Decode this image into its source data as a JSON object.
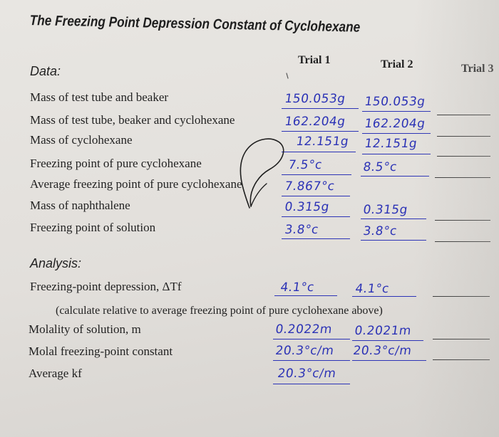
{
  "title": "The Freezing Point Depression Constant of Cyclohexane",
  "data_label": "Data:",
  "trials": [
    "Trial 1",
    "Trial 2",
    "Trial 3"
  ],
  "rows": [
    {
      "label": "Mass of test tube and beaker",
      "trial1": "150.053g",
      "trial2": "150.053g"
    },
    {
      "label": "Mass of test tube, beaker and cyclohexane",
      "trial1": "162.204g",
      "trial2": "162.204g"
    },
    {
      "label": "Mass of cyclohexane",
      "trial1": "12.151g",
      "trial2": "12.151g"
    },
    {
      "label": "Freezing point of pure cyclohexane",
      "trial1": "7.5°c",
      "trial2": "8.5°c"
    },
    {
      "label": "Average freezing point of pure cyclohexane",
      "trial1": "7.867°c"
    },
    {
      "label": "Mass of naphthalene",
      "trial1": "0.315g",
      "trial2": "0.315g"
    },
    {
      "label": "Freezing point of solution",
      "trial1": "3.8°c",
      "trial2": "3.8°c"
    }
  ],
  "analysis_label": "Analysis:",
  "analysis_rows": [
    {
      "label": "Freezing-point depression, ΔTf",
      "trial1": "4.1°c",
      "trial2": "4.1°c"
    },
    {
      "label": "(calculate relative to average freezing point of pure cyclohexane above)"
    },
    {
      "label": "Molality of solution, m",
      "trial1": "0.2022m",
      "trial2": "0.2021m"
    },
    {
      "label": "Molal freezing-point constant",
      "trial1": "20.3°c/m",
      "trial2": "20.3°c/m"
    },
    {
      "label": "Average kf",
      "trial1": "20.3°c/m"
    }
  ],
  "ink_color": "#2c33b6"
}
